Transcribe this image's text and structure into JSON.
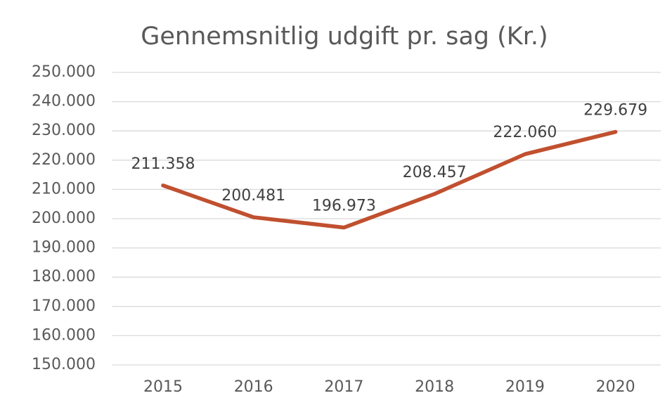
{
  "chart_data": {
    "type": "line",
    "title": "Gennemsnitlig udgift pr. sag (Kr.)",
    "categories": [
      "2015",
      "2016",
      "2017",
      "2018",
      "2019",
      "2020"
    ],
    "values": [
      211358,
      200481,
      196973,
      208457,
      222060,
      229679
    ],
    "value_labels": [
      "211.358",
      "200.481",
      "196.973",
      "208.457",
      "222.060",
      "229.679"
    ],
    "color": "#c0502f",
    "ylim": [
      150000,
      250000
    ],
    "yticks": [
      {
        "value": 150000,
        "label": "150.000"
      },
      {
        "value": 160000,
        "label": "160.000"
      },
      {
        "value": 170000,
        "label": "170.000"
      },
      {
        "value": 180000,
        "label": "180.000"
      },
      {
        "value": 190000,
        "label": "190.000"
      },
      {
        "value": 200000,
        "label": "200.000"
      },
      {
        "value": 210000,
        "label": "210.000"
      },
      {
        "value": 220000,
        "label": "220.000"
      },
      {
        "value": 230000,
        "label": "230.000"
      },
      {
        "value": 240000,
        "label": "240.000"
      },
      {
        "value": 250000,
        "label": "250.000"
      }
    ],
    "grid": true
  }
}
